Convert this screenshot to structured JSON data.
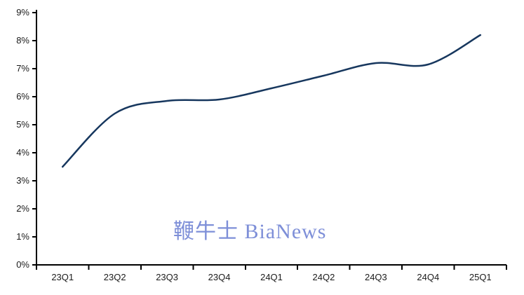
{
  "watermark": {
    "text": "鞭牛士 BiaNews",
    "color": "#7E8FD8"
  },
  "chart_data": {
    "type": "line",
    "title": "",
    "xlabel": "",
    "ylabel": "",
    "categories": [
      "23Q1",
      "23Q2",
      "23Q3",
      "23Q4",
      "24Q1",
      "24Q2",
      "24Q3",
      "24Q4",
      "25Q1"
    ],
    "values": [
      3.5,
      5.4,
      5.85,
      5.9,
      6.3,
      6.75,
      7.2,
      7.15,
      8.2
    ],
    "unit": "%",
    "ylim": [
      0,
      9
    ],
    "y_tick_step": 1,
    "y_tick_labels": [
      "0%",
      "1%",
      "2%",
      "3%",
      "4%",
      "5%",
      "6%",
      "7%",
      "8%",
      "9%"
    ],
    "grid": false,
    "legend": "none",
    "smooth": true,
    "line_color": "#17375E",
    "axis_color": "#000000",
    "label_color": "#1A1A1A"
  }
}
